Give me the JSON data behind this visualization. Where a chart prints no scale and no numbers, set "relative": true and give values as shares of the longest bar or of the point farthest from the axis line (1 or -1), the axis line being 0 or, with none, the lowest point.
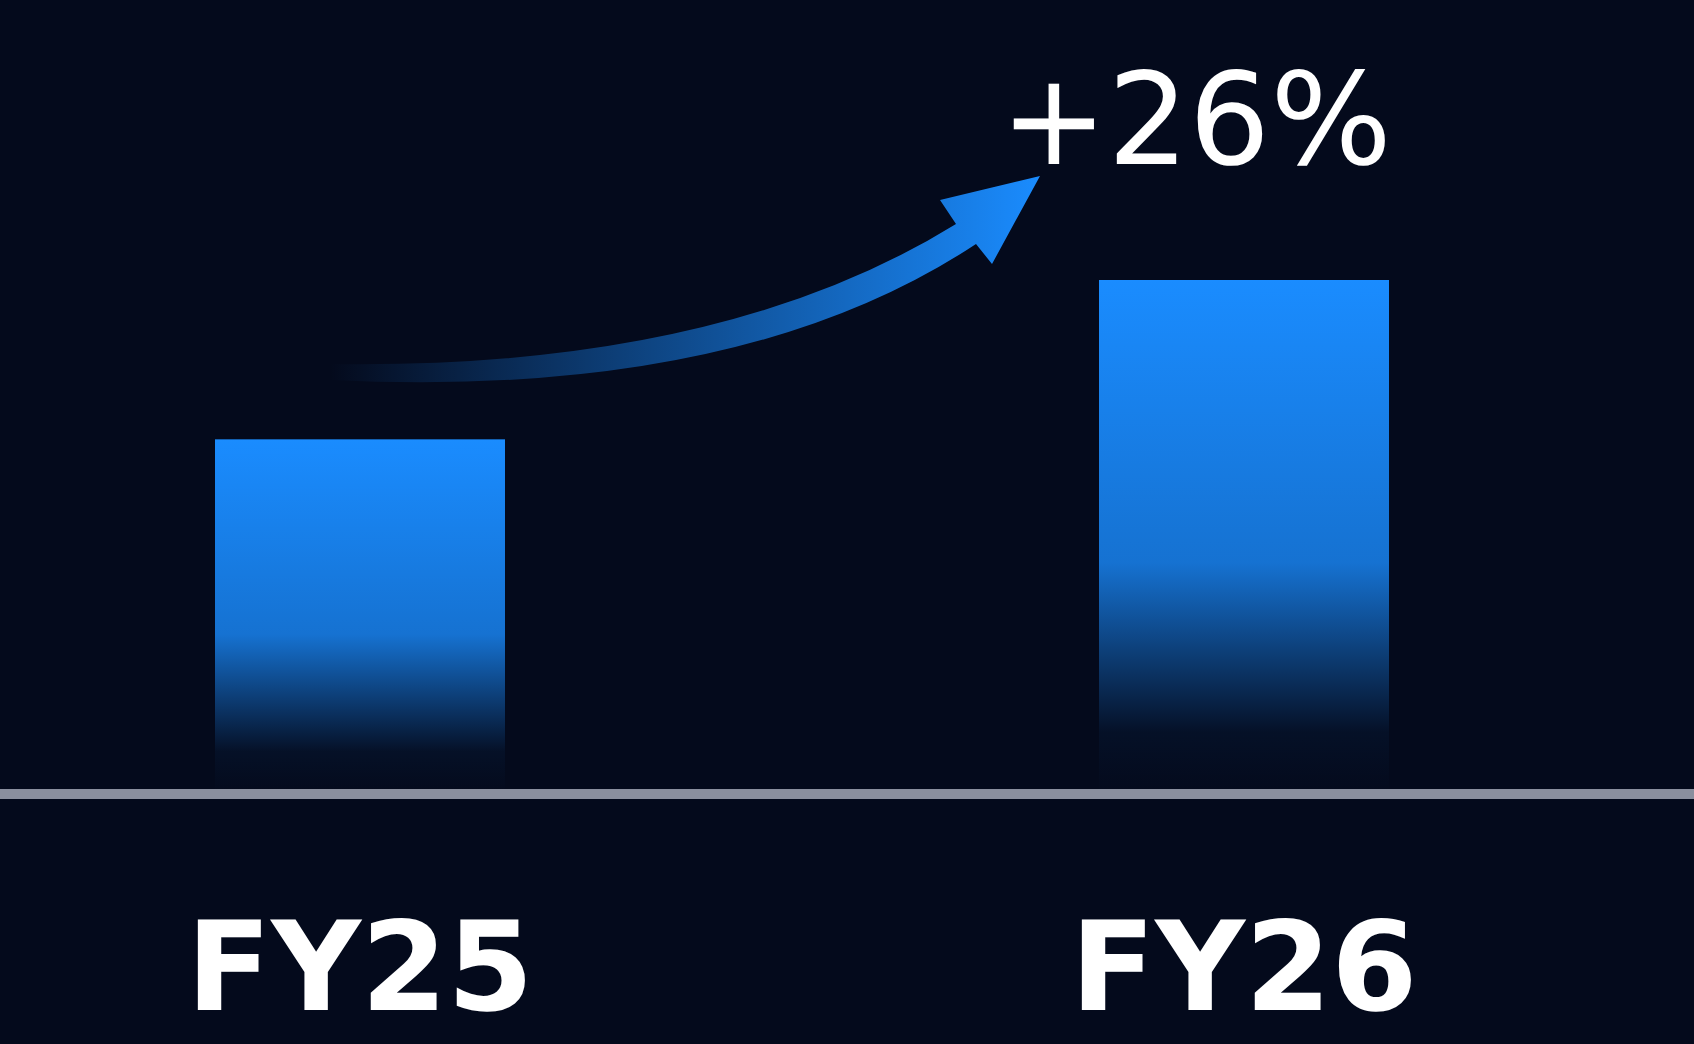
{
  "chart_data": {
    "type": "bar",
    "categories": [
      "FY25",
      "FY26"
    ],
    "values": [
      0.69,
      1
    ],
    "relative": true,
    "color": "#1a8cff",
    "annotations": [
      "+26%"
    ]
  }
}
